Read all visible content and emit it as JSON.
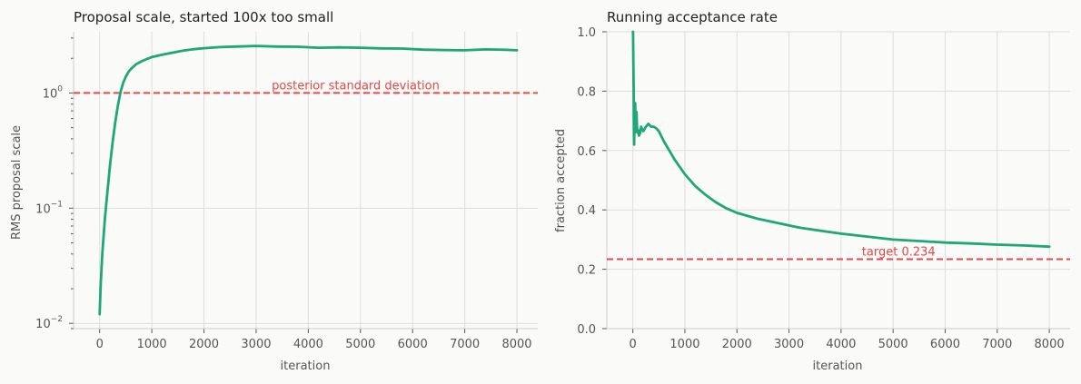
{
  "chart_data": [
    {
      "type": "line",
      "title": "Proposal scale, started 100x too small",
      "xlabel": "iteration",
      "ylabel": "RMS proposal scale",
      "yscale": "log",
      "xlim": [
        -500,
        8400
      ],
      "ylim": [
        0.009,
        3.4
      ],
      "xticks": [
        0,
        1000,
        2000,
        3000,
        4000,
        5000,
        6000,
        7000,
        8000
      ],
      "xtick_labels": [
        "0",
        "1000",
        "2000",
        "3000",
        "4000",
        "5000",
        "6000",
        "7000",
        "8000"
      ],
      "yticks": [
        0.01,
        0.1,
        1
      ],
      "ytick_labels": [
        {
          "base": "10",
          "exp": "−2"
        },
        {
          "base": "10",
          "exp": "−1"
        },
        {
          "base": "10",
          "exp": "0"
        }
      ],
      "grid": true,
      "series": [
        {
          "color": "#1fa67a",
          "x": [
            0,
            20,
            50,
            100,
            150,
            200,
            250,
            300,
            350,
            400,
            450,
            500,
            550,
            600,
            700,
            800,
            900,
            1000,
            1200,
            1400,
            1600,
            1800,
            2000,
            2300,
            2600,
            3000,
            3400,
            3800,
            4200,
            4600,
            5000,
            5400,
            5800,
            6200,
            6600,
            7000,
            7400,
            7800,
            8000
          ],
          "y": [
            0.012,
            0.022,
            0.04,
            0.08,
            0.14,
            0.24,
            0.38,
            0.56,
            0.78,
            1.02,
            1.22,
            1.38,
            1.52,
            1.62,
            1.78,
            1.88,
            1.97,
            2.05,
            2.15,
            2.24,
            2.33,
            2.4,
            2.45,
            2.5,
            2.53,
            2.56,
            2.53,
            2.52,
            2.47,
            2.49,
            2.47,
            2.44,
            2.43,
            2.38,
            2.36,
            2.35,
            2.39,
            2.37,
            2.35
          ]
        }
      ],
      "hline": {
        "y": 1.0,
        "color": "#e04a4a",
        "label": "posterior standard deviation",
        "label_x": 3300
      }
    },
    {
      "type": "line",
      "title": "Running acceptance rate",
      "xlabel": "iteration",
      "ylabel": "fraction accepted",
      "yscale": "linear",
      "xlim": [
        -500,
        8400
      ],
      "ylim": [
        0.0,
        1.0
      ],
      "xticks": [
        0,
        1000,
        2000,
        3000,
        4000,
        5000,
        6000,
        7000,
        8000
      ],
      "xtick_labels": [
        "0",
        "1000",
        "2000",
        "3000",
        "4000",
        "5000",
        "6000",
        "7000",
        "8000"
      ],
      "yticks": [
        0.0,
        0.2,
        0.4,
        0.6,
        0.8,
        1.0
      ],
      "ytick_labels": [
        "0.0",
        "0.2",
        "0.4",
        "0.6",
        "0.8",
        "1.0"
      ],
      "grid": true,
      "series": [
        {
          "color": "#1fa67a",
          "x": [
            0,
            5,
            10,
            15,
            20,
            25,
            30,
            35,
            40,
            45,
            50,
            60,
            70,
            80,
            90,
            100,
            120,
            140,
            160,
            180,
            200,
            250,
            300,
            350,
            400,
            450,
            500,
            600,
            700,
            800,
            1000,
            1200,
            1400,
            1600,
            1800,
            2000,
            2400,
            2800,
            3200,
            3600,
            4000,
            4500,
            5000,
            5500,
            6000,
            6500,
            7000,
            7500,
            8000
          ],
          "y": [
            1.0,
            1.0,
            0.9,
            0.82,
            0.68,
            0.62,
            0.74,
            0.7,
            0.66,
            0.76,
            0.72,
            0.7,
            0.73,
            0.68,
            0.66,
            0.67,
            0.65,
            0.66,
            0.68,
            0.67,
            0.665,
            0.68,
            0.69,
            0.68,
            0.68,
            0.675,
            0.665,
            0.63,
            0.6,
            0.57,
            0.52,
            0.48,
            0.45,
            0.425,
            0.405,
            0.39,
            0.37,
            0.355,
            0.34,
            0.33,
            0.32,
            0.31,
            0.3,
            0.295,
            0.29,
            0.287,
            0.283,
            0.28,
            0.276
          ]
        }
      ],
      "hline": {
        "y": 0.234,
        "color": "#e04a4a",
        "label": "target 0.234",
        "label_x": 4400
      }
    }
  ]
}
